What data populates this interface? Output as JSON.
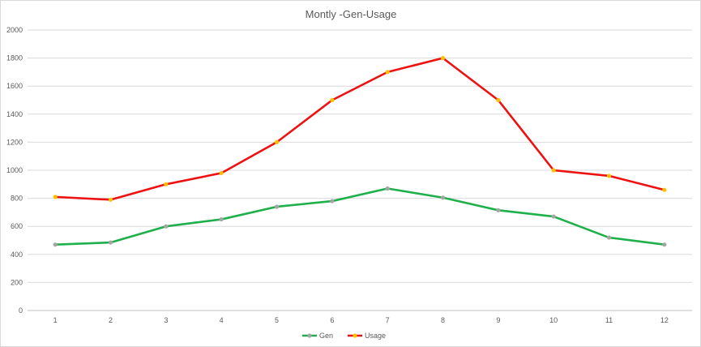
{
  "chart_data": {
    "type": "line",
    "title": "Montly -Gen-Usage",
    "xlabel": "",
    "ylabel": "",
    "x": [
      1,
      2,
      3,
      4,
      5,
      6,
      7,
      8,
      9,
      10,
      11,
      12
    ],
    "ylim": [
      0,
      2000
    ],
    "yticks": [
      0,
      200,
      400,
      600,
      800,
      1000,
      1200,
      1400,
      1600,
      1800,
      2000
    ],
    "grid": true,
    "legend_position": "bottom",
    "series": [
      {
        "name": "Gen",
        "color": "#1fb04b",
        "marker_color": "#a5a5a5",
        "values": [
          470,
          485,
          600,
          650,
          740,
          780,
          870,
          805,
          715,
          670,
          520,
          470
        ]
      },
      {
        "name": "Usage",
        "color": "#ee1111",
        "marker_color": "#ffc000",
        "values": [
          810,
          790,
          900,
          980,
          1200,
          1500,
          1700,
          1800,
          1500,
          1000,
          960,
          860
        ]
      }
    ]
  }
}
